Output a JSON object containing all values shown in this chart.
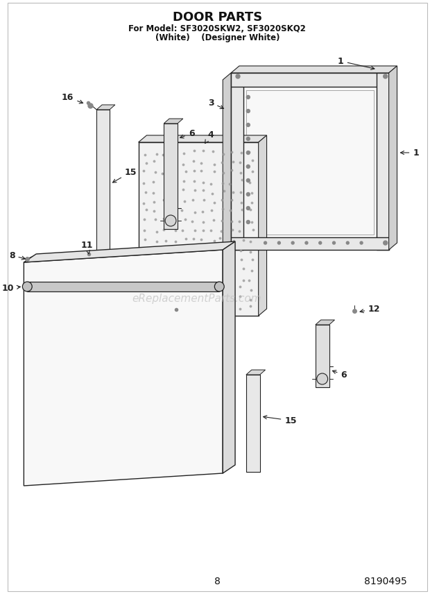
{
  "title": "DOOR PARTS",
  "subtitle1": "For Model: SF3020SKW2, SF3020SKQ2",
  "subtitle2": "(White)    (Designer White)",
  "page_number": "8",
  "part_number": "8190495",
  "background_color": "#ffffff",
  "line_color": "#222222",
  "watermark": "eReplacementParts.com",
  "watermark_color": "#cccccc"
}
